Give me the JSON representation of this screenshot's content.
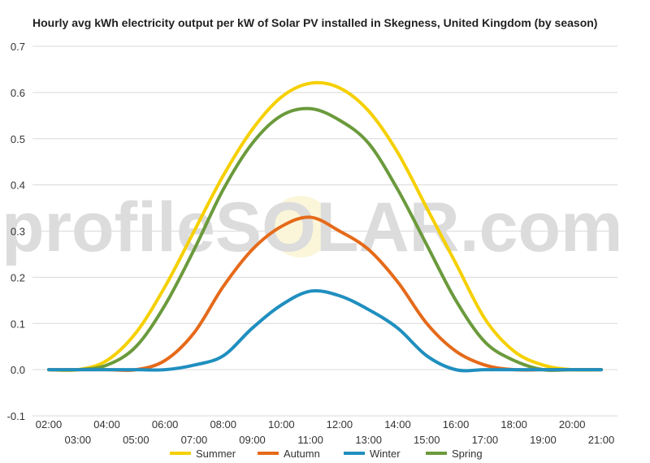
{
  "chart_data": {
    "type": "line",
    "title": "Hourly avg kWh electricity output per kW of Solar PV installed in Skegness, United Kingdom (by season)",
    "xlabel": "",
    "ylabel": "",
    "ylim": [
      -0.1,
      0.7
    ],
    "yticks": [
      -0.1,
      0.0,
      0.1,
      0.2,
      0.3,
      0.4,
      0.5,
      0.6,
      0.7
    ],
    "ytick_labels": [
      "-0.1",
      "0.0",
      "0.1",
      "0.2",
      "0.3",
      "0.4",
      "0.5",
      "0.6",
      "0.7"
    ],
    "x": [
      2,
      3,
      4,
      5,
      6,
      7,
      8,
      9,
      10,
      11,
      12,
      13,
      14,
      15,
      16,
      17,
      18,
      19,
      20,
      21
    ],
    "xtick_labels": [
      "02:00",
      "03:00",
      "04:00",
      "05:00",
      "06:00",
      "07:00",
      "08:00",
      "09:00",
      "10:00",
      "11:00",
      "12:00",
      "13:00",
      "14:00",
      "15:00",
      "16:00",
      "17:00",
      "18:00",
      "19:00",
      "20:00",
      "21:00"
    ],
    "grid": true,
    "legend_position": "bottom",
    "watermark": "profileSOLAR.com",
    "series": [
      {
        "name": "Summer",
        "color": "#f5d000",
        "values": [
          0.0,
          0.0,
          0.02,
          0.08,
          0.18,
          0.3,
          0.42,
          0.52,
          0.59,
          0.62,
          0.61,
          0.56,
          0.47,
          0.35,
          0.23,
          0.11,
          0.04,
          0.01,
          0.0,
          0.0
        ]
      },
      {
        "name": "Autumn",
        "color": "#e56a1a",
        "values": [
          0.0,
          0.0,
          0.0,
          0.0,
          0.02,
          0.08,
          0.18,
          0.26,
          0.31,
          0.33,
          0.3,
          0.26,
          0.19,
          0.1,
          0.04,
          0.01,
          0.0,
          0.0,
          0.0,
          0.0
        ]
      },
      {
        "name": "Winter",
        "color": "#1f8fbf",
        "values": [
          0.0,
          0.0,
          0.0,
          0.0,
          0.0,
          0.01,
          0.03,
          0.09,
          0.14,
          0.17,
          0.16,
          0.13,
          0.09,
          0.03,
          0.0,
          0.0,
          0.0,
          0.0,
          0.0,
          0.0
        ]
      },
      {
        "name": "Spring",
        "color": "#6b9a3c",
        "values": [
          0.0,
          0.0,
          0.01,
          0.05,
          0.14,
          0.26,
          0.39,
          0.49,
          0.55,
          0.565,
          0.54,
          0.49,
          0.39,
          0.27,
          0.15,
          0.06,
          0.02,
          0.0,
          0.0,
          0.0
        ]
      }
    ]
  }
}
